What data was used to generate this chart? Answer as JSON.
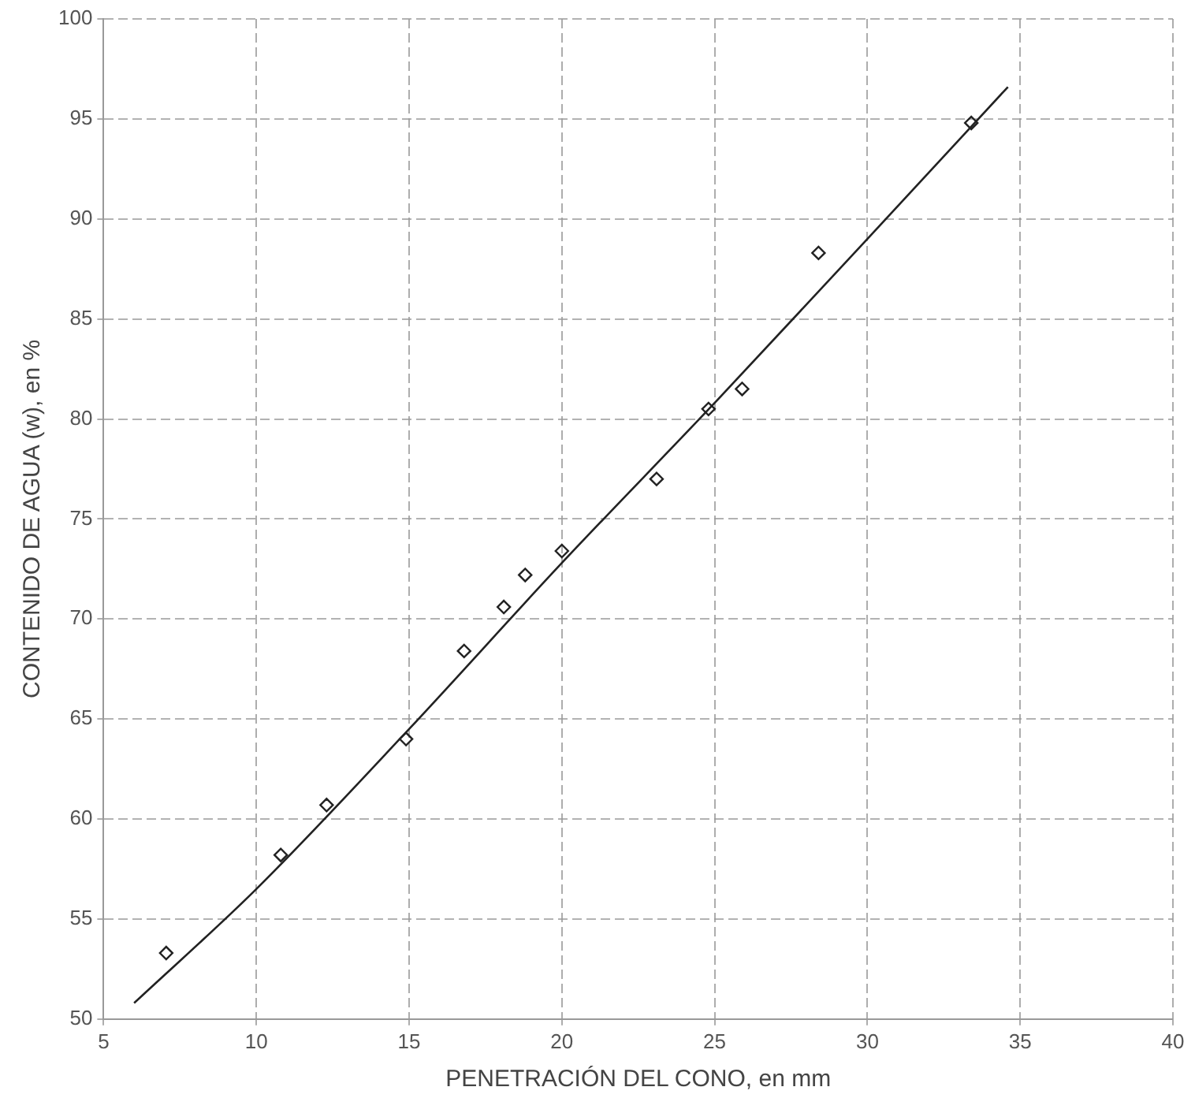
{
  "chart_data": {
    "type": "scatter",
    "xlabel": "PENETRACIÓN DEL CONO, en mm",
    "ylabel": "CONTENIDO DE AGUA (w), en %",
    "xlim": [
      5,
      40
    ],
    "xticks": [
      5,
      10,
      15,
      20,
      25,
      30,
      35,
      40
    ],
    "ylim": [
      50,
      100
    ],
    "yticks": [
      50,
      55,
      60,
      65,
      70,
      75,
      80,
      85,
      90,
      95,
      100
    ],
    "grid": true,
    "marker": "diamond",
    "series": [
      {
        "type": "scatter",
        "color": "#222222",
        "x": [
          7.05,
          10.8,
          12.3,
          14.9,
          16.8,
          18.1,
          18.8,
          20.0,
          23.1,
          24.8,
          25.9,
          28.4,
          33.4
        ],
        "values": [
          53.3,
          58.2,
          60.7,
          64.0,
          68.4,
          70.6,
          72.2,
          73.4,
          77.0,
          80.5,
          81.5,
          88.3,
          94.8
        ]
      },
      {
        "type": "line",
        "color": "#222222",
        "marker": "none",
        "x": [
          6,
          10,
          15,
          20,
          25,
          30,
          34.6
        ],
        "values": [
          50.8,
          56.5,
          64.5,
          72.8,
          80.8,
          89,
          96.6
        ]
      }
    ]
  }
}
